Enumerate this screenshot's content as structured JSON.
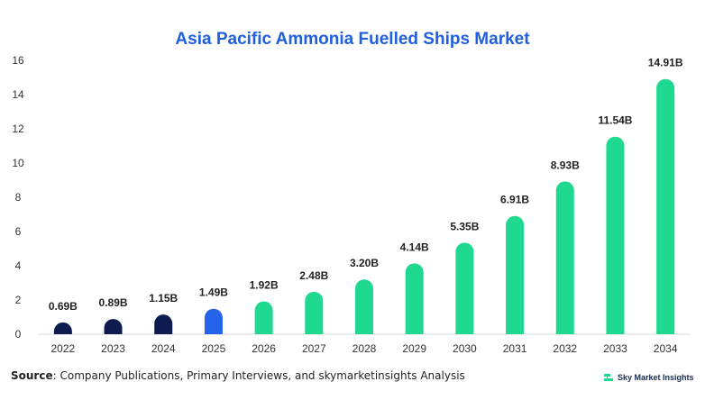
{
  "chart_data": {
    "type": "bar",
    "title": "Asia Pacific Ammonia Fuelled Ships Market",
    "xlabel": "",
    "ylabel": "",
    "ylim": [
      0,
      16
    ],
    "yticks": [
      0,
      2,
      4,
      6,
      8,
      10,
      12,
      14,
      16
    ],
    "grid": false,
    "categories": [
      "2022",
      "2023",
      "2024",
      "2025",
      "2026",
      "2027",
      "2028",
      "2029",
      "2030",
      "2031",
      "2032",
      "2033",
      "2034"
    ],
    "values": [
      0.69,
      0.89,
      1.15,
      1.49,
      1.92,
      2.48,
      3.2,
      4.14,
      5.35,
      6.91,
      8.93,
      11.54,
      14.91
    ],
    "data_labels": [
      "0.69B",
      "0.89B",
      "1.15B",
      "1.49B",
      "1.92B",
      "2.48B",
      "3.20B",
      "4.14B",
      "5.35B",
      "6.91B",
      "8.93B",
      "11.54B",
      "14.91B"
    ],
    "bar_colors": [
      "#0d1b4f",
      "#0d1b4f",
      "#0d1b4f",
      "#2563eb",
      "#1ed98f",
      "#1ed98f",
      "#1ed98f",
      "#1ed98f",
      "#1ed98f",
      "#1ed98f",
      "#1ed98f",
      "#1ed98f",
      "#1ed98f"
    ]
  },
  "footer": {
    "source_label": "Source",
    "source_text": ": Company Publications, Primary Interviews, and skymarketinsights Analysis",
    "brand_name": "Sky Market Insights",
    "brand_icon": "sky-market-insights-logo-icon"
  }
}
